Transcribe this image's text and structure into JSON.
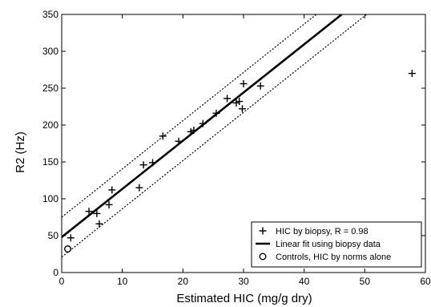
{
  "chart_data": {
    "type": "scatter",
    "xlabel": "Estimated HIC (mg/g dry)",
    "ylabel": "R2 (Hz)",
    "xlim": [
      0,
      60
    ],
    "ylim": [
      0,
      350
    ],
    "xticks": [
      0,
      10,
      20,
      30,
      40,
      50,
      60
    ],
    "yticks": [
      0,
      50,
      100,
      150,
      200,
      250,
      300,
      350
    ],
    "grid": false,
    "legend_position": "bottom-right",
    "series": [
      {
        "name": "HIC by biopsy, R = 0.98",
        "marker": "plus",
        "points": [
          [
            1.5,
            47
          ],
          [
            4.5,
            83
          ],
          [
            5.8,
            80
          ],
          [
            6.2,
            66
          ],
          [
            7.8,
            92
          ],
          [
            8.3,
            112
          ],
          [
            12.8,
            115
          ],
          [
            13.5,
            146
          ],
          [
            15,
            149
          ],
          [
            16.7,
            185
          ],
          [
            19.3,
            178
          ],
          [
            21.3,
            191
          ],
          [
            21.8,
            193
          ],
          [
            23.3,
            202
          ],
          [
            25.5,
            216
          ],
          [
            27.3,
            236
          ],
          [
            28.8,
            230
          ],
          [
            29.3,
            232
          ],
          [
            29.8,
            222
          ],
          [
            30,
            256
          ],
          [
            32.8,
            253
          ],
          [
            57.8,
            270
          ]
        ]
      },
      {
        "name": "Linear fit using biopsy data",
        "type": "line",
        "line": [
          [
            0,
            48
          ],
          [
            46.2,
            350
          ]
        ]
      },
      {
        "name": "Controls, HIC by norms alone",
        "marker": "circle",
        "points": [
          [
            1,
            32
          ]
        ]
      }
    ],
    "confidence_bounds": [
      [
        [
          0,
          75
        ],
        [
          42,
          350
        ]
      ],
      [
        [
          0,
          21
        ],
        [
          50.3,
          350
        ]
      ]
    ]
  }
}
